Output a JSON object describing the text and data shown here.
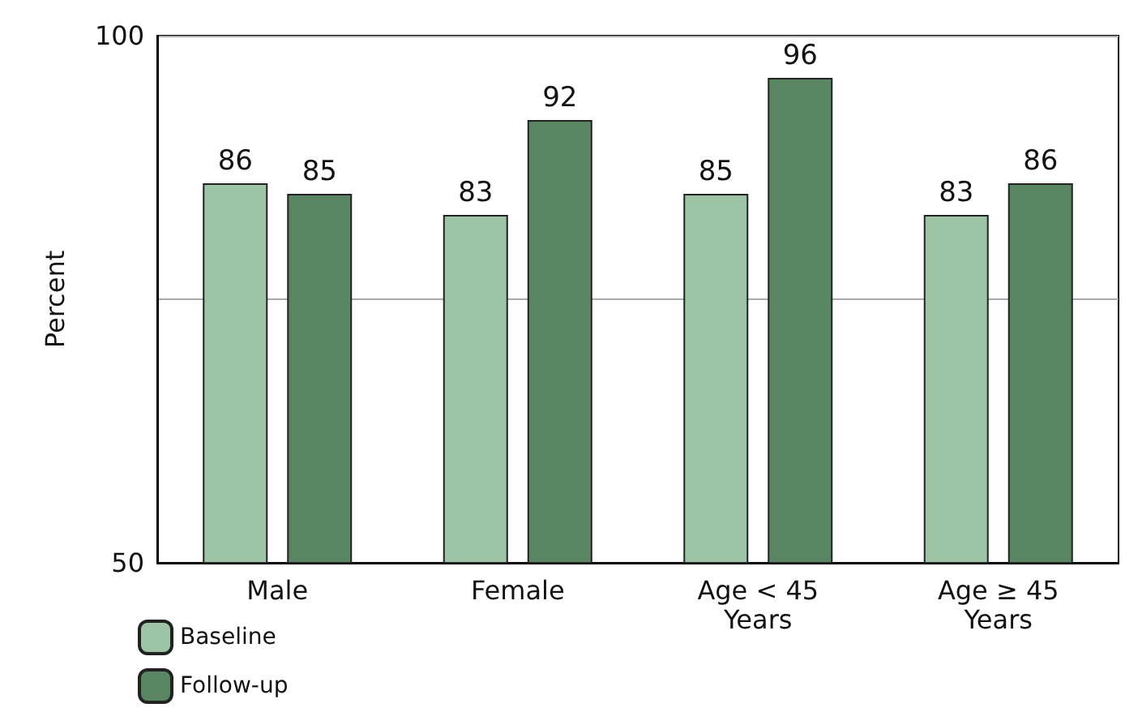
{
  "chart_data": {
    "type": "bar",
    "ylabel": "Percent",
    "categories": [
      "Male",
      "Female",
      "Age < 45\nYears",
      "Age ≥ 45\nYears"
    ],
    "series": [
      {
        "name": "Baseline",
        "color": "#9dc4a6",
        "values": [
          86,
          83,
          85,
          83
        ]
      },
      {
        "name": "Follow-up",
        "color": "#5a8563",
        "values": [
          85,
          92,
          96,
          86
        ]
      }
    ],
    "ylim": [
      50,
      100
    ],
    "yticks": [
      50,
      {
        "value": 75,
        "label": null
      },
      100
    ],
    "grid": "y",
    "data_labels": true,
    "legend": "bottom left"
  }
}
